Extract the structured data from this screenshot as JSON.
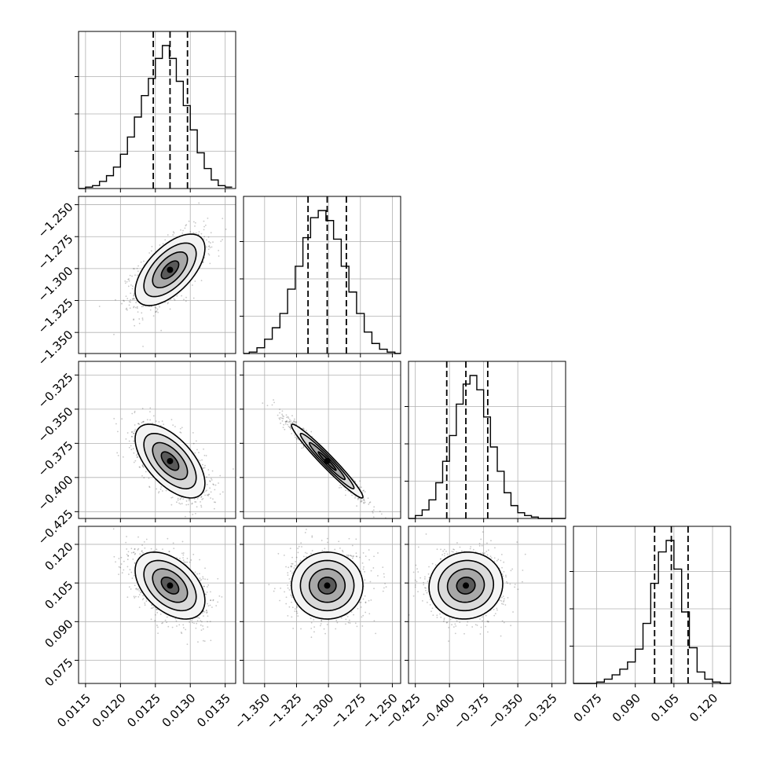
{
  "chart_data": {
    "type": "corner",
    "grid": true,
    "parameters": [
      {
        "index": 0,
        "range": [
          0.0114,
          0.01365
        ],
        "ticks": [
          0.0115,
          0.012,
          0.0125,
          0.013,
          0.0135
        ],
        "tick_labels": [
          "0.0115",
          "0.0120",
          "0.0125",
          "0.0130",
          "0.0135"
        ],
        "mean": 0.01271,
        "sigma": 0.00025,
        "quantiles": [
          0.01247,
          0.01271,
          0.01296
        ],
        "hist_step_x": [
          0.0114,
          0.0115,
          0.0116,
          0.0117,
          0.0118,
          0.0119,
          0.012,
          0.0121,
          0.0122,
          0.0123,
          0.0124,
          0.0125,
          0.0126,
          0.0127,
          0.0128,
          0.0129,
          0.013,
          0.0131,
          0.0132,
          0.0133,
          0.0134,
          0.0135,
          0.0136
        ],
        "hist_counts": [
          0.0,
          0.01,
          0.02,
          0.05,
          0.09,
          0.15,
          0.24,
          0.36,
          0.5,
          0.65,
          0.77,
          0.91,
          1.0,
          0.91,
          0.75,
          0.58,
          0.41,
          0.25,
          0.14,
          0.06,
          0.02,
          0.01
        ]
      },
      {
        "index": 1,
        "range": [
          -1.3665,
          -1.2435
        ],
        "ticks": [
          -1.35,
          -1.325,
          -1.3,
          -1.275,
          -1.25
        ],
        "tick_labels": [
          "−1.350",
          "−1.325",
          "−1.300",
          "−1.275",
          "−1.250"
        ],
        "mean": -1.301,
        "sigma": 0.014,
        "quantiles": [
          -1.316,
          -1.301,
          -1.286
        ],
        "hist_step_x": [
          -1.3665,
          -1.362,
          -1.356,
          -1.35,
          -1.344,
          -1.338,
          -1.332,
          -1.326,
          -1.32,
          -1.314,
          -1.308,
          -1.302,
          -1.296,
          -1.29,
          -1.284,
          -1.278,
          -1.272,
          -1.266,
          -1.26,
          -1.254,
          -1.248,
          -1.2435
        ],
        "hist_counts": [
          0.0,
          0.01,
          0.04,
          0.1,
          0.18,
          0.28,
          0.45,
          0.61,
          0.81,
          0.95,
          1.0,
          0.93,
          0.8,
          0.61,
          0.43,
          0.28,
          0.15,
          0.07,
          0.03,
          0.01,
          0.0
        ]
      },
      {
        "index": 2,
        "range": [
          -0.43,
          -0.315
        ],
        "ticks": [
          -0.425,
          -0.4,
          -0.375,
          -0.35,
          -0.325
        ],
        "tick_labels": [
          "−0.425",
          "−0.400",
          "−0.375",
          "−0.350",
          "−0.325"
        ],
        "mean": -0.388,
        "sigma": 0.0135,
        "quantiles": [
          -0.402,
          -0.388,
          -0.372
        ],
        "hist_step_x": [
          -0.43,
          -0.425,
          -0.42,
          -0.415,
          -0.41,
          -0.405,
          -0.4,
          -0.395,
          -0.39,
          -0.385,
          -0.38,
          -0.375,
          -0.37,
          -0.365,
          -0.36,
          -0.355,
          -0.35,
          -0.345,
          -0.34,
          -0.335,
          -0.33,
          -0.325,
          -0.315
        ],
        "hist_counts": [
          0.0,
          0.02,
          0.06,
          0.13,
          0.25,
          0.4,
          0.58,
          0.8,
          0.94,
          1.0,
          0.9,
          0.71,
          0.5,
          0.33,
          0.18,
          0.09,
          0.04,
          0.02,
          0.01,
          0.0,
          0.0,
          0.0
        ]
      },
      {
        "index": 3,
        "range": [
          0.066,
          0.127
        ],
        "ticks": [
          0.075,
          0.09,
          0.105,
          0.12
        ],
        "tick_labels": [
          "0.075",
          "0.090",
          "0.105",
          "0.120"
        ],
        "mean": 0.104,
        "sigma": 0.0065,
        "quantiles": [
          0.0975,
          0.104,
          0.1105
        ],
        "hist_step_x": [
          0.066,
          0.075,
          0.078,
          0.081,
          0.084,
          0.087,
          0.09,
          0.093,
          0.096,
          0.099,
          0.102,
          0.105,
          0.108,
          0.111,
          0.114,
          0.117,
          0.12,
          0.123,
          0.127
        ],
        "hist_counts": [
          0.0,
          0.01,
          0.03,
          0.06,
          0.1,
          0.15,
          0.24,
          0.42,
          0.7,
          0.92,
          1.0,
          0.8,
          0.5,
          0.25,
          0.08,
          0.03,
          0.01,
          0.0
        ]
      }
    ],
    "correlations": [
      {
        "pair": [
          0,
          1
        ],
        "rho": 0.6
      },
      {
        "pair": [
          0,
          2
        ],
        "rho": -0.6
      },
      {
        "pair": [
          1,
          2
        ],
        "rho": -0.97
      },
      {
        "pair": [
          0,
          3
        ],
        "rho": -0.45
      },
      {
        "pair": [
          1,
          3
        ],
        "rho": 0.0
      },
      {
        "pair": [
          2,
          3
        ],
        "rho": 0.05
      }
    ],
    "contour_levels_sigma": [
      0.5,
      1.0,
      1.5,
      2.0
    ],
    "samples_per_panel": 1400
  }
}
